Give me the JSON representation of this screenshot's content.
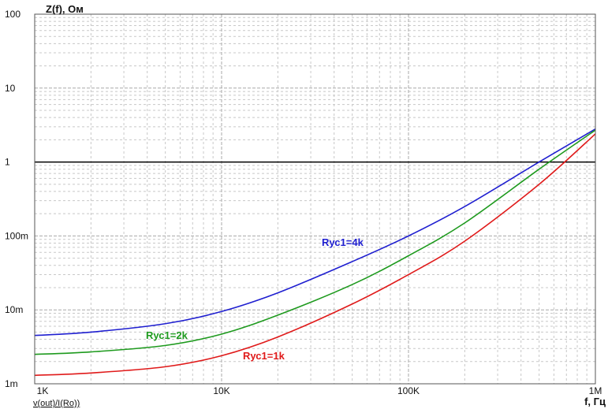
{
  "chart_data": {
    "type": "line",
    "y_scale": "log",
    "x_scale": "log",
    "title": "",
    "ylabel": "Z(f), Ом",
    "xlabel": "f, Гц",
    "expression": "v(out)/I(Ro))",
    "grid": true,
    "xlim": [
      1000,
      1000000
    ],
    "ylim": [
      0.001,
      100
    ],
    "x_ticks": [
      {
        "value": 1000,
        "label": "1K"
      },
      {
        "value": 10000,
        "label": "10K"
      },
      {
        "value": 100000,
        "label": "100K"
      },
      {
        "value": 1000000,
        "label": "1M"
      }
    ],
    "y_ticks": [
      {
        "value": 100,
        "label": "100"
      },
      {
        "value": 10,
        "label": "10"
      },
      {
        "value": 1,
        "label": "1"
      },
      {
        "value": 0.1,
        "label": "100m"
      },
      {
        "value": 0.01,
        "label": "10m"
      },
      {
        "value": 0.001,
        "label": "1m"
      }
    ],
    "reference_line": {
      "y": 1,
      "color": "#000000"
    },
    "series": [
      {
        "name": "Rус1=4k",
        "color": "#1f1fd0",
        "x": [
          1000,
          2000,
          5000,
          10000,
          20000,
          50000,
          100000,
          200000,
          500000,
          1000000
        ],
        "y": [
          0.0045,
          0.005,
          0.0065,
          0.0095,
          0.017,
          0.045,
          0.1,
          0.25,
          1.0,
          2.8
        ]
      },
      {
        "name": "Rус1=2k",
        "color": "#1e9a1e",
        "x": [
          1000,
          2000,
          5000,
          10000,
          20000,
          50000,
          100000,
          200000,
          500000,
          1000000
        ],
        "y": [
          0.0025,
          0.0027,
          0.0033,
          0.0047,
          0.0085,
          0.022,
          0.054,
          0.15,
          0.8,
          2.7
        ]
      },
      {
        "name": "Rус1=1k",
        "color": "#e01a1a",
        "x": [
          1000,
          2000,
          5000,
          10000,
          20000,
          50000,
          100000,
          200000,
          500000,
          1000000
        ],
        "y": [
          0.0013,
          0.0014,
          0.0017,
          0.0024,
          0.0043,
          0.012,
          0.03,
          0.085,
          0.5,
          2.4
        ]
      }
    ]
  }
}
